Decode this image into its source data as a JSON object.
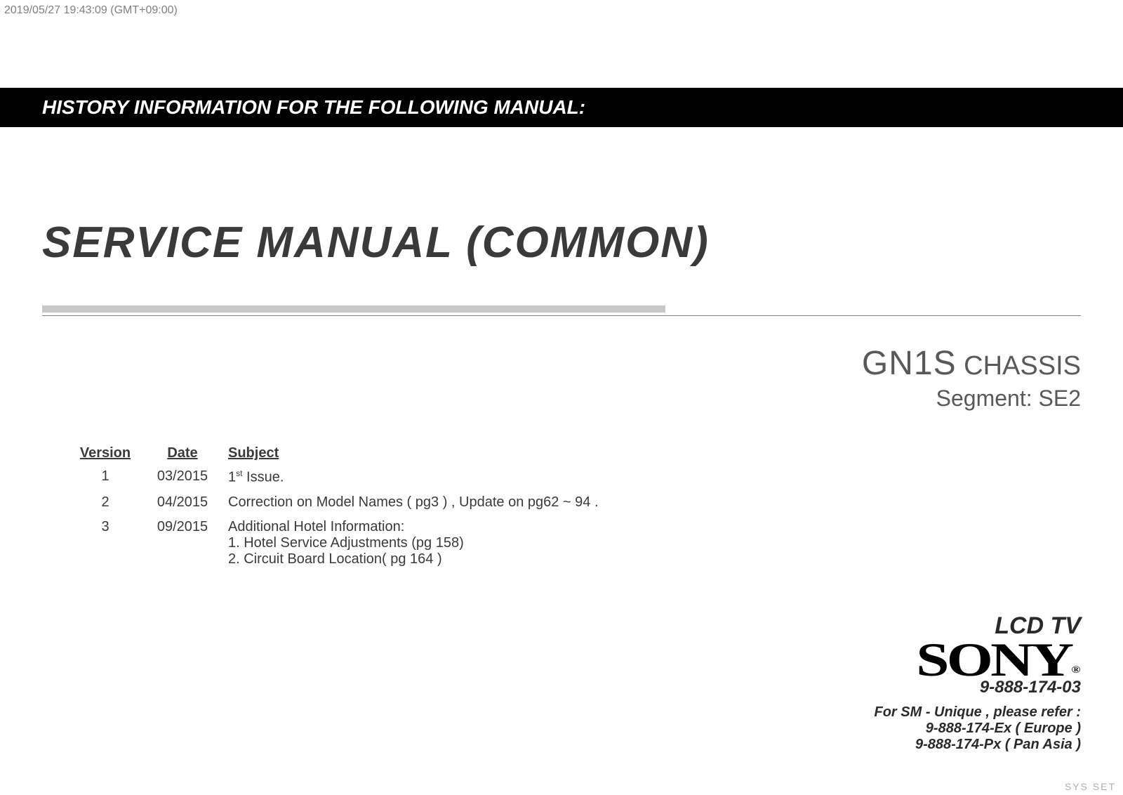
{
  "timestamp": "2019/05/27 19:43:09 (GMT+09:00)",
  "header_bar": "HISTORY INFORMATION FOR THE FOLLOWING MANUAL:",
  "main_title": "SERVICE MANUAL (COMMON)",
  "chassis": {
    "code": "GN1S",
    "label": "CHASSIS",
    "segment": "Segment: SE2"
  },
  "table": {
    "headers": {
      "version": "Version",
      "date": "Date",
      "subject": "Subject"
    },
    "rows": [
      {
        "version": "1",
        "date": "03/2015",
        "subject_pre": "1",
        "subject_sup": "st",
        "subject_post": " Issue."
      },
      {
        "version": "2",
        "date": "04/2015",
        "subject": "Correction on Model Names ( pg3 ) , Update on pg62 ~ 94 ."
      },
      {
        "version": "3",
        "date": "09/2015",
        "subject_main": "Additional Hotel Information:",
        "subject_line1": "1.  Hotel Service Adjustments (pg 158)",
        "subject_line2": "2.  Circuit Board Location( pg 164 )"
      }
    ]
  },
  "footer": {
    "lcd_tv": "LCD TV",
    "brand": "SONY",
    "reg": "®",
    "doc_number": "9-888-174-03",
    "refer": "For  SM - Unique , please refer :",
    "ref_europe": "9-888-174-Ex ( Europe )",
    "ref_panasia": "9-888-174-Px ( Pan Asia )"
  },
  "sys_set": "SYS SET",
  "colors": {
    "bar_bg": "#000000",
    "bar_fg": "#ffffff",
    "body_text": "#3a3a3a",
    "grey_rule": "#c8c8c8",
    "chassis_text": "#595959",
    "timestamp": "#808080",
    "sys_set": "#b0b0b0"
  }
}
